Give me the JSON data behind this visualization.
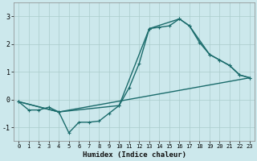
{
  "xlabel": "Humidex (Indice chaleur)",
  "background_color": "#cce8ec",
  "grid_color": "#aacccc",
  "line_color": "#1a6b6b",
  "xlim": [
    -0.5,
    23.5
  ],
  "ylim": [
    -1.5,
    3.5
  ],
  "xticks": [
    0,
    1,
    2,
    3,
    4,
    5,
    6,
    7,
    8,
    9,
    10,
    11,
    12,
    13,
    14,
    15,
    16,
    17,
    18,
    19,
    20,
    21,
    22,
    23
  ],
  "yticks": [
    -1,
    0,
    1,
    2,
    3
  ],
  "curve1_x": [
    0,
    1,
    2,
    3,
    4,
    5,
    6,
    7,
    8,
    9,
    10,
    11,
    12,
    13,
    14,
    15,
    16,
    17,
    18,
    19,
    20,
    21,
    22,
    23
  ],
  "curve1_y": [
    -0.08,
    -0.38,
    -0.38,
    -0.28,
    -0.45,
    -1.2,
    -0.82,
    -0.82,
    -0.78,
    -0.5,
    -0.22,
    0.42,
    1.3,
    2.55,
    2.6,
    2.65,
    2.9,
    2.65,
    2.05,
    1.62,
    1.42,
    1.22,
    0.88,
    0.78
  ],
  "curve2_x": [
    0,
    4,
    10,
    13,
    16,
    17,
    19,
    20,
    21,
    22,
    23
  ],
  "curve2_y": [
    -0.08,
    -0.45,
    -0.22,
    2.55,
    2.9,
    2.65,
    1.62,
    1.42,
    1.22,
    0.88,
    0.78
  ],
  "curve3_x": [
    0,
    4,
    23
  ],
  "curve3_y": [
    -0.08,
    -0.45,
    0.78
  ],
  "marker_size": 3.0,
  "line_width": 1.0
}
